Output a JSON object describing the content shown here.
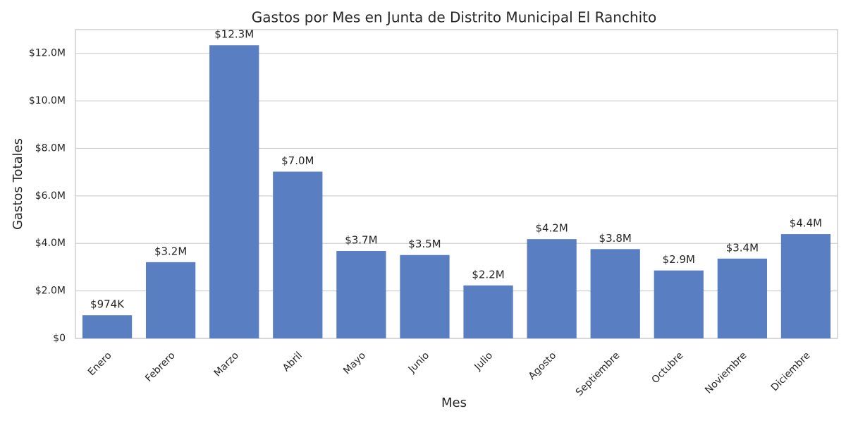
{
  "chart_data": {
    "type": "bar",
    "title": "Gastos por Mes en Junta de Distrito Municipal El Ranchito",
    "x_label": "Mes",
    "y_label": "Gastos Totales",
    "categories": [
      "Enero",
      "Febrero",
      "Marzo",
      "Abril",
      "Mayo",
      "Junio",
      "Julio",
      "Agosto",
      "Septiembre",
      "Octubre",
      "Noviembre",
      "Diciembre"
    ],
    "values": [
      974000,
      3210000,
      12340000,
      7020000,
      3680000,
      3510000,
      2230000,
      4180000,
      3760000,
      2860000,
      3360000,
      4390000
    ],
    "value_labels": [
      "$974K",
      "$3.2M",
      "$12.3M",
      "$7.0M",
      "$3.7M",
      "$3.5M",
      "$2.2M",
      "$4.2M",
      "$3.8M",
      "$2.9M",
      "$3.4M",
      "$4.4M"
    ],
    "color": "#5a7ec2",
    "ylim": [
      0,
      13000000
    ],
    "yticks": [
      {
        "value": 0,
        "label": "$0"
      },
      {
        "value": 2000000,
        "label": "$2.0M"
      },
      {
        "value": 4000000,
        "label": "$4.0M"
      },
      {
        "value": 6000000,
        "label": "$6.0M"
      },
      {
        "value": 8000000,
        "label": "$8.0M"
      },
      {
        "value": 10000000,
        "label": "$10.0M"
      },
      {
        "value": 12000000,
        "label": "$12.0M"
      }
    ],
    "grid": true
  }
}
